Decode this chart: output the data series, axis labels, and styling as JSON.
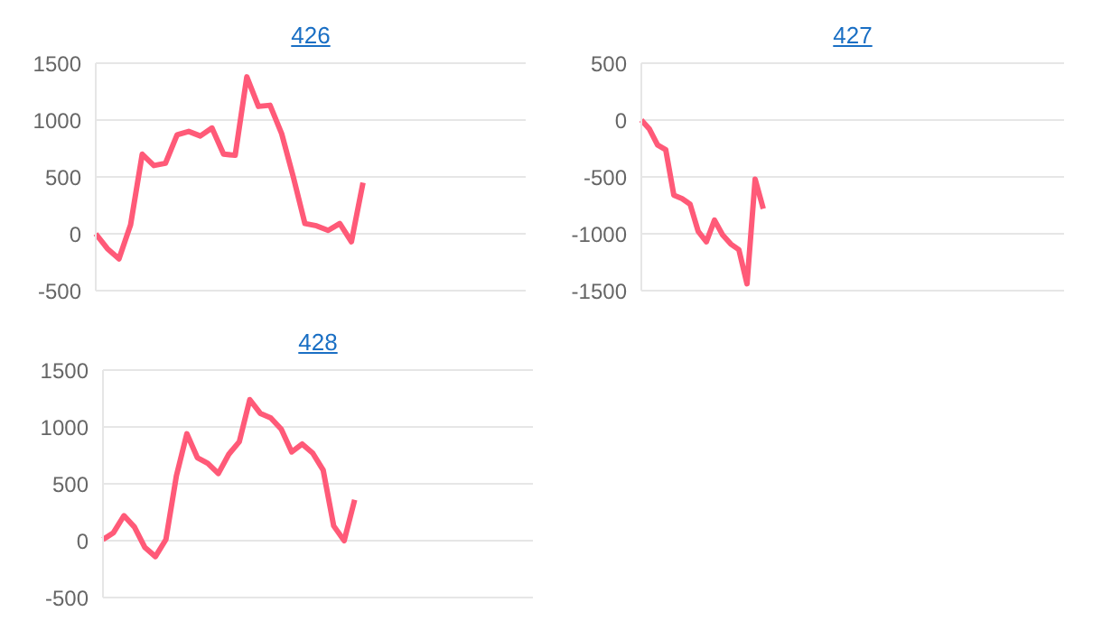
{
  "chart_data": [
    {
      "type": "line",
      "title": "426",
      "categories": [
        null,
        null,
        null,
        null,
        null,
        null,
        null,
        null,
        null,
        null,
        null,
        null,
        null,
        null,
        null,
        null,
        null,
        null,
        null,
        null,
        null,
        null,
        null,
        null,
        null,
        null,
        null,
        null,
        null,
        null,
        null,
        null,
        null,
        null,
        null,
        null,
        null,
        null
      ],
      "series": [
        {
          "color": "#ff5a78",
          "values": [
            0,
            -130,
            -220,
            80,
            700,
            600,
            620,
            870,
            900,
            860,
            930,
            700,
            690,
            1380,
            1120,
            1130,
            880,
            500,
            90,
            70,
            30,
            90,
            -70,
            450,
            null,
            null,
            null,
            null,
            null,
            null,
            null,
            null,
            null,
            null,
            null,
            null,
            null,
            null
          ]
        }
      ],
      "ylim": [
        -500,
        1500
      ],
      "yticks": [
        -500,
        0,
        500,
        1000,
        1500
      ],
      "grid": "y",
      "tick_labels": "y"
    },
    {
      "type": "line",
      "title": "427",
      "categories": [
        null,
        null,
        null,
        null,
        null,
        null,
        null,
        null,
        null,
        null,
        null,
        null,
        null,
        null,
        null,
        null,
        null,
        null,
        null,
        null,
        null,
        null,
        null,
        null,
        null,
        null,
        null,
        null,
        null,
        null,
        null,
        null,
        null,
        null,
        null,
        null,
        null,
        null,
        null,
        null,
        null,
        null,
        null,
        null,
        null,
        null,
        null,
        null,
        null,
        null,
        null,
        null,
        null
      ],
      "series": [
        {
          "color": "#ff5a78",
          "values": [
            0,
            -80,
            -220,
            -260,
            -660,
            -690,
            -740,
            -980,
            -1070,
            -880,
            -1010,
            -1090,
            -1140,
            -1440,
            -520,
            -780,
            null,
            null,
            null,
            null,
            null,
            null,
            null,
            null,
            null,
            null,
            null,
            null,
            null,
            null,
            null,
            null,
            null,
            null,
            null,
            null,
            null,
            null,
            null,
            null,
            null,
            null,
            null,
            null,
            null,
            null,
            null,
            null,
            null,
            null,
            null,
            null,
            null
          ]
        }
      ],
      "ylim": [
        -1500,
        500
      ],
      "yticks": [
        -1500,
        -1000,
        -500,
        0,
        500
      ],
      "grid": "y",
      "tick_labels": "y"
    },
    {
      "type": "line",
      "title": "428",
      "categories": [
        null,
        null,
        null,
        null,
        null,
        null,
        null,
        null,
        null,
        null,
        null,
        null,
        null,
        null,
        null,
        null,
        null,
        null,
        null,
        null,
        null,
        null,
        null,
        null,
        null,
        null,
        null,
        null,
        null,
        null,
        null,
        null,
        null,
        null,
        null,
        null,
        null,
        null,
        null,
        null,
        null,
        null
      ],
      "series": [
        {
          "color": "#ff5a78",
          "values": [
            10,
            70,
            220,
            120,
            -60,
            -140,
            10,
            570,
            940,
            730,
            680,
            590,
            760,
            870,
            1240,
            1120,
            1080,
            980,
            780,
            850,
            770,
            620,
            130,
            0,
            360,
            null,
            null,
            null,
            null,
            null,
            null,
            null,
            null,
            null,
            null,
            null,
            null,
            null,
            null,
            null,
            null,
            null
          ]
        }
      ],
      "ylim": [
        -500,
        1500
      ],
      "yticks": [
        -500,
        0,
        500,
        1000,
        1500
      ],
      "grid": "y",
      "tick_labels": "y"
    }
  ]
}
